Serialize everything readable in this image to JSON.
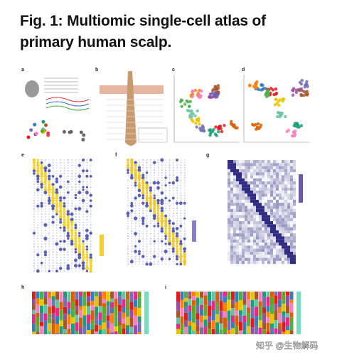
{
  "header": {
    "title_lines": [
      "Fig. 1: Multiomic single-cell atlas of",
      "primary human scalp."
    ]
  },
  "panels": [
    {
      "label": "a"
    },
    {
      "label": "b"
    },
    {
      "label": "c"
    },
    {
      "label": "d"
    },
    {
      "label": "e"
    },
    {
      "label": "f"
    },
    {
      "label": "g"
    },
    {
      "label": "h"
    },
    {
      "label": "i"
    }
  ],
  "watermark": "知乎 @生物解码"
}
